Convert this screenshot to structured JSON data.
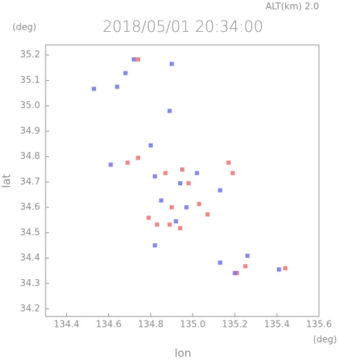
{
  "chart_data": {
    "type": "scatter",
    "title": "2018/05/01 20:34:00",
    "subtitle": "ALT(km) 2.0",
    "y_unit": "(deg)",
    "x_unit": "(deg)",
    "x_label": "lon",
    "y_label": "lat",
    "xlim": [
      134.3,
      135.6
    ],
    "ylim": [
      34.17,
      35.24
    ],
    "xticks": [
      134.4,
      134.6,
      134.8,
      {
        "value": 135,
        "label": "135.0"
      },
      135.2,
      135.4,
      135.6
    ],
    "yticks": [
      34.2,
      34.3,
      34.4,
      34.5,
      34.6,
      34.7,
      34.8,
      34.9,
      {
        "value": 35,
        "label": "35.0"
      },
      35.1,
      35.2
    ],
    "series": [
      {
        "color": "#ee6f6f",
        "x": [
          134.74,
          134.69,
          134.74,
          134.87,
          134.95,
          134.9,
          134.94,
          134.89,
          134.79,
          135.19,
          135.17,
          135.21,
          135.25,
          135.44,
          135.03,
          135.07,
          134.83,
          134.98
        ],
        "values": [
          35.183,
          34.776,
          34.795,
          34.735,
          34.749,
          34.6,
          34.518,
          34.532,
          34.559,
          34.735,
          34.776,
          34.341,
          34.368,
          34.36,
          34.613,
          34.572,
          34.532,
          34.695
        ]
      },
      {
        "color": "#6f6fee",
        "x": [
          134.68,
          134.72,
          134.53,
          134.64,
          134.89,
          134.9,
          134.8,
          134.61,
          134.82,
          134.94,
          135.02,
          134.97,
          134.92,
          135.13,
          135.26,
          135.2,
          135.13,
          135.41,
          134.82,
          134.85
        ],
        "values": [
          35.129,
          35.183,
          35.067,
          35.075,
          34.98,
          35.165,
          34.844,
          34.768,
          34.722,
          34.695,
          34.735,
          34.6,
          34.545,
          34.667,
          34.409,
          34.341,
          34.382,
          34.355,
          34.45,
          34.627
        ]
      }
    ]
  }
}
